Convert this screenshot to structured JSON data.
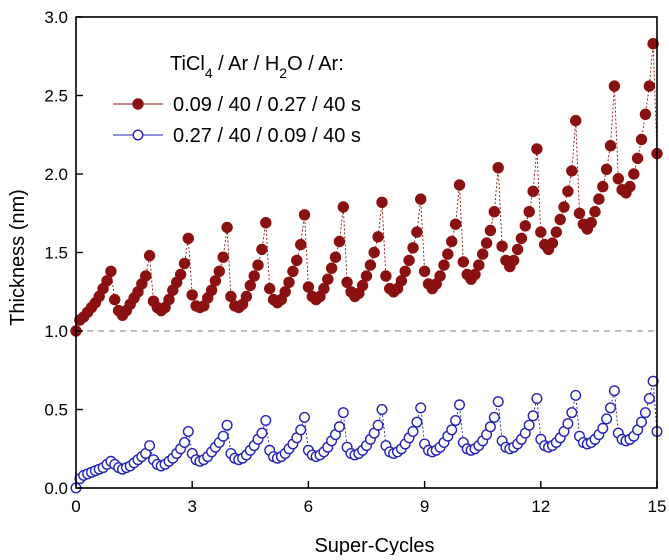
{
  "chart_data": {
    "type": "scatter",
    "title": "",
    "xlabel": "Super-Cycles",
    "ylabel": "Thickness (nm)",
    "xlim": [
      0,
      15
    ],
    "ylim": [
      0,
      3.0
    ],
    "xticks": [
      "0",
      "3",
      "6",
      "9",
      "12",
      "15"
    ],
    "yticks": [
      "0.0",
      "0.5",
      "1.0",
      "1.5",
      "2.0",
      "2.5",
      "3.0"
    ],
    "grid": false,
    "legend_position": "top-left",
    "reference_line": {
      "y": 1.0,
      "style": "dashed",
      "color": "#999999"
    },
    "legend_title": {
      "tokens": [
        {
          "t": "TiCl",
          "sub": false
        },
        {
          "t": "4",
          "sub": true
        },
        {
          "t": " / Ar / H",
          "sub": false
        },
        {
          "t": "2",
          "sub": true
        },
        {
          "t": "O / Ar:",
          "sub": false
        }
      ]
    },
    "series": [
      {
        "name": "0.09 / 40 / 0.27 / 40 s",
        "color": "#8b1010",
        "marker": "filled-circle",
        "x": [
          0,
          0.1,
          0.2,
          0.3,
          0.4,
          0.5,
          0.6,
          0.7,
          0.8,
          0.9,
          1.0,
          1.1,
          1.2,
          1.3,
          1.4,
          1.5,
          1.6,
          1.7,
          1.8,
          1.9,
          2.0,
          2.1,
          2.2,
          2.3,
          2.4,
          2.5,
          2.6,
          2.7,
          2.8,
          2.9,
          3.0,
          3.1,
          3.2,
          3.3,
          3.4,
          3.5,
          3.6,
          3.7,
          3.8,
          3.9,
          4.0,
          4.1,
          4.2,
          4.3,
          4.4,
          4.5,
          4.6,
          4.7,
          4.8,
          4.9,
          5.0,
          5.1,
          5.2,
          5.3,
          5.4,
          5.5,
          5.6,
          5.7,
          5.8,
          5.9,
          6.0,
          6.1,
          6.2,
          6.3,
          6.4,
          6.5,
          6.6,
          6.7,
          6.8,
          6.9,
          7.0,
          7.1,
          7.2,
          7.3,
          7.4,
          7.5,
          7.6,
          7.7,
          7.8,
          7.9,
          8.0,
          8.1,
          8.2,
          8.3,
          8.4,
          8.5,
          8.6,
          8.7,
          8.8,
          8.9,
          9.0,
          9.1,
          9.2,
          9.3,
          9.4,
          9.5,
          9.6,
          9.7,
          9.8,
          9.9,
          10.0,
          10.1,
          10.2,
          10.3,
          10.4,
          10.5,
          10.6,
          10.7,
          10.8,
          10.9,
          11.0,
          11.1,
          11.2,
          11.3,
          11.4,
          11.5,
          11.6,
          11.7,
          11.8,
          11.9,
          12.0,
          12.1,
          12.2,
          12.3,
          12.4,
          12.5,
          12.6,
          12.7,
          12.8,
          12.9,
          13.0,
          13.1,
          13.2,
          13.3,
          13.4,
          13.5,
          13.6,
          13.7,
          13.8,
          13.9,
          14.0,
          14.1,
          14.2,
          14.3,
          14.4,
          14.5,
          14.6,
          14.7,
          14.8,
          14.9,
          15.0
        ],
        "y": [
          1.0,
          1.07,
          1.09,
          1.12,
          1.15,
          1.18,
          1.22,
          1.27,
          1.32,
          1.38,
          1.2,
          1.13,
          1.1,
          1.13,
          1.17,
          1.21,
          1.25,
          1.3,
          1.35,
          1.48,
          1.19,
          1.15,
          1.13,
          1.15,
          1.2,
          1.26,
          1.31,
          1.36,
          1.43,
          1.59,
          1.23,
          1.16,
          1.15,
          1.16,
          1.21,
          1.26,
          1.32,
          1.38,
          1.47,
          1.66,
          1.22,
          1.16,
          1.15,
          1.17,
          1.22,
          1.29,
          1.35,
          1.42,
          1.52,
          1.69,
          1.27,
          1.2,
          1.18,
          1.2,
          1.25,
          1.31,
          1.38,
          1.45,
          1.55,
          1.74,
          1.28,
          1.22,
          1.2,
          1.22,
          1.27,
          1.33,
          1.4,
          1.47,
          1.57,
          1.79,
          1.31,
          1.25,
          1.22,
          1.24,
          1.29,
          1.35,
          1.42,
          1.5,
          1.6,
          1.82,
          1.35,
          1.27,
          1.25,
          1.27,
          1.32,
          1.38,
          1.45,
          1.53,
          1.63,
          1.84,
          1.38,
          1.3,
          1.27,
          1.3,
          1.35,
          1.42,
          1.49,
          1.57,
          1.68,
          1.93,
          1.44,
          1.36,
          1.33,
          1.36,
          1.42,
          1.49,
          1.56,
          1.64,
          1.76,
          2.04,
          1.54,
          1.45,
          1.41,
          1.45,
          1.52,
          1.59,
          1.67,
          1.76,
          1.89,
          2.16,
          1.63,
          1.55,
          1.52,
          1.56,
          1.63,
          1.71,
          1.79,
          1.89,
          2.02,
          2.34,
          1.75,
          1.68,
          1.65,
          1.69,
          1.76,
          1.84,
          1.92,
          2.03,
          2.18,
          2.56,
          1.97,
          1.9,
          1.88,
          1.92,
          2.0,
          2.1,
          2.22,
          2.38,
          2.56,
          2.83,
          2.13
        ]
      },
      {
        "name": "0.27 / 40 / 0.09 / 40 s",
        "color": "#2323b5",
        "marker": "open-circle",
        "x": [
          0,
          0.1,
          0.2,
          0.3,
          0.4,
          0.5,
          0.6,
          0.7,
          0.8,
          0.9,
          1.0,
          1.1,
          1.2,
          1.3,
          1.4,
          1.5,
          1.6,
          1.7,
          1.8,
          1.9,
          2.0,
          2.1,
          2.2,
          2.3,
          2.4,
          2.5,
          2.6,
          2.7,
          2.8,
          2.9,
          3.0,
          3.1,
          3.2,
          3.3,
          3.4,
          3.5,
          3.6,
          3.7,
          3.8,
          3.9,
          4.0,
          4.1,
          4.2,
          4.3,
          4.4,
          4.5,
          4.6,
          4.7,
          4.8,
          4.9,
          5.0,
          5.1,
          5.2,
          5.3,
          5.4,
          5.5,
          5.6,
          5.7,
          5.8,
          5.9,
          6.0,
          6.1,
          6.2,
          6.3,
          6.4,
          6.5,
          6.6,
          6.7,
          6.8,
          6.9,
          7.0,
          7.1,
          7.2,
          7.3,
          7.4,
          7.5,
          7.6,
          7.7,
          7.8,
          7.9,
          8.0,
          8.1,
          8.2,
          8.3,
          8.4,
          8.5,
          8.6,
          8.7,
          8.8,
          8.9,
          9.0,
          9.1,
          9.2,
          9.3,
          9.4,
          9.5,
          9.6,
          9.7,
          9.8,
          9.9,
          10.0,
          10.1,
          10.2,
          10.3,
          10.4,
          10.5,
          10.6,
          10.7,
          10.8,
          10.9,
          11.0,
          11.1,
          11.2,
          11.3,
          11.4,
          11.5,
          11.6,
          11.7,
          11.8,
          11.9,
          12.0,
          12.1,
          12.2,
          12.3,
          12.4,
          12.5,
          12.6,
          12.7,
          12.8,
          12.9,
          13.0,
          13.1,
          13.2,
          13.3,
          13.4,
          13.5,
          13.6,
          13.7,
          13.8,
          13.9,
          14.0,
          14.1,
          14.2,
          14.3,
          14.4,
          14.5,
          14.6,
          14.7,
          14.8,
          14.9,
          15.0
        ],
        "y": [
          0.0,
          0.06,
          0.08,
          0.09,
          0.1,
          0.11,
          0.12,
          0.13,
          0.15,
          0.17,
          0.15,
          0.13,
          0.12,
          0.13,
          0.14,
          0.16,
          0.18,
          0.2,
          0.22,
          0.27,
          0.18,
          0.15,
          0.14,
          0.15,
          0.17,
          0.19,
          0.22,
          0.25,
          0.29,
          0.36,
          0.22,
          0.18,
          0.17,
          0.18,
          0.2,
          0.23,
          0.26,
          0.29,
          0.33,
          0.4,
          0.22,
          0.19,
          0.18,
          0.19,
          0.21,
          0.24,
          0.27,
          0.31,
          0.35,
          0.43,
          0.24,
          0.2,
          0.19,
          0.2,
          0.22,
          0.25,
          0.28,
          0.32,
          0.37,
          0.45,
          0.24,
          0.21,
          0.2,
          0.21,
          0.23,
          0.26,
          0.3,
          0.34,
          0.39,
          0.48,
          0.26,
          0.22,
          0.21,
          0.22,
          0.24,
          0.27,
          0.31,
          0.35,
          0.4,
          0.5,
          0.27,
          0.23,
          0.22,
          0.23,
          0.25,
          0.28,
          0.32,
          0.36,
          0.42,
          0.51,
          0.28,
          0.24,
          0.23,
          0.24,
          0.26,
          0.29,
          0.33,
          0.37,
          0.43,
          0.53,
          0.29,
          0.25,
          0.24,
          0.25,
          0.27,
          0.3,
          0.34,
          0.39,
          0.45,
          0.55,
          0.3,
          0.26,
          0.25,
          0.26,
          0.28,
          0.31,
          0.35,
          0.4,
          0.46,
          0.57,
          0.31,
          0.27,
          0.26,
          0.27,
          0.29,
          0.32,
          0.36,
          0.41,
          0.48,
          0.59,
          0.33,
          0.29,
          0.28,
          0.29,
          0.31,
          0.34,
          0.38,
          0.44,
          0.51,
          0.62,
          0.35,
          0.31,
          0.3,
          0.31,
          0.33,
          0.37,
          0.42,
          0.48,
          0.57,
          0.68,
          0.36
        ]
      }
    ]
  }
}
